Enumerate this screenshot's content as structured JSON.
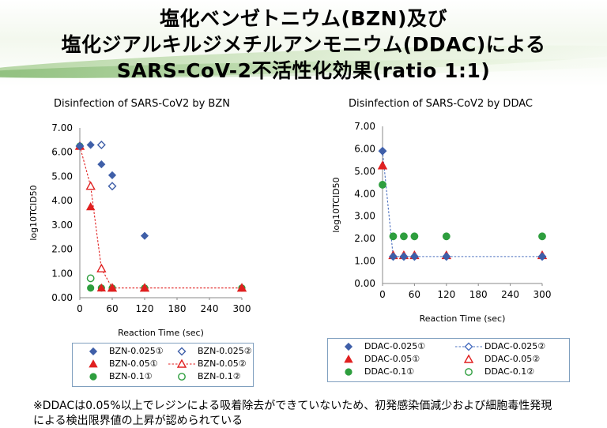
{
  "title": {
    "line1": "塩化ベンゼトニウム(BZN)及び",
    "line2": "塩化ジアルキルジメチルアンモニウム(DDAC)による",
    "line3": "SARS-CoV-2不活性化効果(ratio 1:1)"
  },
  "note": {
    "line1": "※DDACは0.05%以上でレジンによる吸着除去ができていないため、初発感染価減少および細胞毒性発現",
    "line2": "による検出限界値の上昇が認められている"
  },
  "colors": {
    "blue": "#3f5fa8",
    "red": "#e02020",
    "green": "#2e9e3e",
    "link_blue": "#4a6fbf"
  },
  "chart_data": [
    {
      "type": "scatter",
      "title": "Disinfection of SARS-CoV2 by BZN",
      "xlabel": "Reaction Time (sec)",
      "ylabel": "log10TCID50",
      "xticks": [
        0,
        60,
        120,
        180,
        240,
        300
      ],
      "yticks": [
        "0.00",
        "1.00",
        "2.00",
        "3.00",
        "4.00",
        "5.00",
        "6.00",
        "7.00"
      ],
      "xlim": [
        0,
        300
      ],
      "ylim": [
        0,
        7
      ],
      "series": [
        {
          "name": "BZN-0.025①",
          "marker": "diamond-filled",
          "color": "#3f5fa8",
          "line": false,
          "points": [
            [
              0,
              6.25
            ],
            [
              20,
              6.3
            ],
            [
              40,
              5.5
            ],
            [
              60,
              5.05
            ],
            [
              120,
              2.55
            ]
          ]
        },
        {
          "name": "BZN-0.025②",
          "marker": "diamond-open",
          "color": "#3f5fa8",
          "line": false,
          "points": [
            [
              0,
              6.25
            ],
            [
              40,
              6.3
            ],
            [
              60,
              4.6
            ]
          ]
        },
        {
          "name": "BZN-0.05①",
          "marker": "triangle-filled",
          "color": "#e02020",
          "line": false,
          "points": [
            [
              0,
              6.25
            ],
            [
              20,
              3.75
            ],
            [
              40,
              0.4
            ],
            [
              60,
              0.4
            ],
            [
              120,
              0.4
            ],
            [
              300,
              0.4
            ]
          ]
        },
        {
          "name": "BZN-0.05②",
          "marker": "triangle-open",
          "color": "#e02020",
          "line": true,
          "points": [
            [
              0,
              6.25
            ],
            [
              20,
              4.6
            ],
            [
              40,
              1.2
            ],
            [
              60,
              0.4
            ],
            [
              120,
              0.4
            ],
            [
              300,
              0.4
            ]
          ]
        },
        {
          "name": "BZN-0.1①",
          "marker": "circle-filled",
          "color": "#2e9e3e",
          "line": false,
          "points": [
            [
              0,
              6.25
            ],
            [
              20,
              0.4
            ],
            [
              40,
              0.4
            ],
            [
              60,
              0.4
            ],
            [
              120,
              0.4
            ],
            [
              300,
              0.4
            ]
          ]
        },
        {
          "name": "BZN-0.1②",
          "marker": "circle-open",
          "color": "#2e9e3e",
          "line": false,
          "points": [
            [
              20,
              0.8
            ]
          ]
        }
      ]
    },
    {
      "type": "scatter",
      "title": "Disinfection of SARS-CoV2 by DDAC",
      "xlabel": "Reaction Time (sec)",
      "ylabel": "log10TCID50",
      "xticks": [
        0,
        60,
        120,
        180,
        240,
        300
      ],
      "yticks": [
        "0.00",
        "1.00",
        "2.00",
        "3.00",
        "4.00",
        "5.00",
        "6.00",
        "7.00"
      ],
      "xlim": [
        0,
        300
      ],
      "ylim": [
        0,
        7
      ],
      "series": [
        {
          "name": "DDAC-0.025①",
          "marker": "diamond-filled",
          "color": "#3f5fa8",
          "line": false,
          "points": [
            [
              0,
              5.9
            ],
            [
              20,
              1.2
            ],
            [
              40,
              1.2
            ],
            [
              60,
              1.2
            ],
            [
              120,
              1.2
            ],
            [
              300,
              1.2
            ]
          ]
        },
        {
          "name": "DDAC-0.025②",
          "marker": "diamond-open",
          "color": "#4a6fbf",
          "line": true,
          "points": [
            [
              0,
              5.9
            ],
            [
              20,
              1.2
            ],
            [
              40,
              1.2
            ],
            [
              60,
              1.2
            ],
            [
              120,
              1.2
            ],
            [
              300,
              1.2
            ]
          ]
        },
        {
          "name": "DDAC-0.05①",
          "marker": "triangle-filled",
          "color": "#e02020",
          "line": false,
          "points": [
            [
              0,
              5.25
            ],
            [
              20,
              1.25
            ],
            [
              40,
              1.25
            ],
            [
              60,
              1.25
            ],
            [
              120,
              1.25
            ],
            [
              300,
              1.25
            ]
          ]
        },
        {
          "name": "DDAC-0.05②",
          "marker": "triangle-open",
          "color": "#e02020",
          "line": false,
          "points": [
            [
              0,
              5.25
            ],
            [
              20,
              1.25
            ],
            [
              40,
              1.25
            ],
            [
              60,
              1.25
            ],
            [
              120,
              1.25
            ],
            [
              300,
              1.25
            ]
          ]
        },
        {
          "name": "DDAC-0.1①",
          "marker": "circle-filled",
          "color": "#2e9e3e",
          "line": false,
          "points": [
            [
              0,
              4.4
            ],
            [
              20,
              2.1
            ],
            [
              40,
              2.1
            ],
            [
              60,
              2.1
            ],
            [
              120,
              2.1
            ],
            [
              300,
              2.1
            ]
          ]
        },
        {
          "name": "DDAC-0.1②",
          "marker": "circle-open",
          "color": "#2e9e3e",
          "line": false,
          "points": [
            [
              0,
              4.4
            ],
            [
              20,
              2.1
            ],
            [
              40,
              2.1
            ],
            [
              60,
              2.1
            ],
            [
              120,
              2.1
            ],
            [
              300,
              2.1
            ]
          ]
        }
      ]
    }
  ]
}
